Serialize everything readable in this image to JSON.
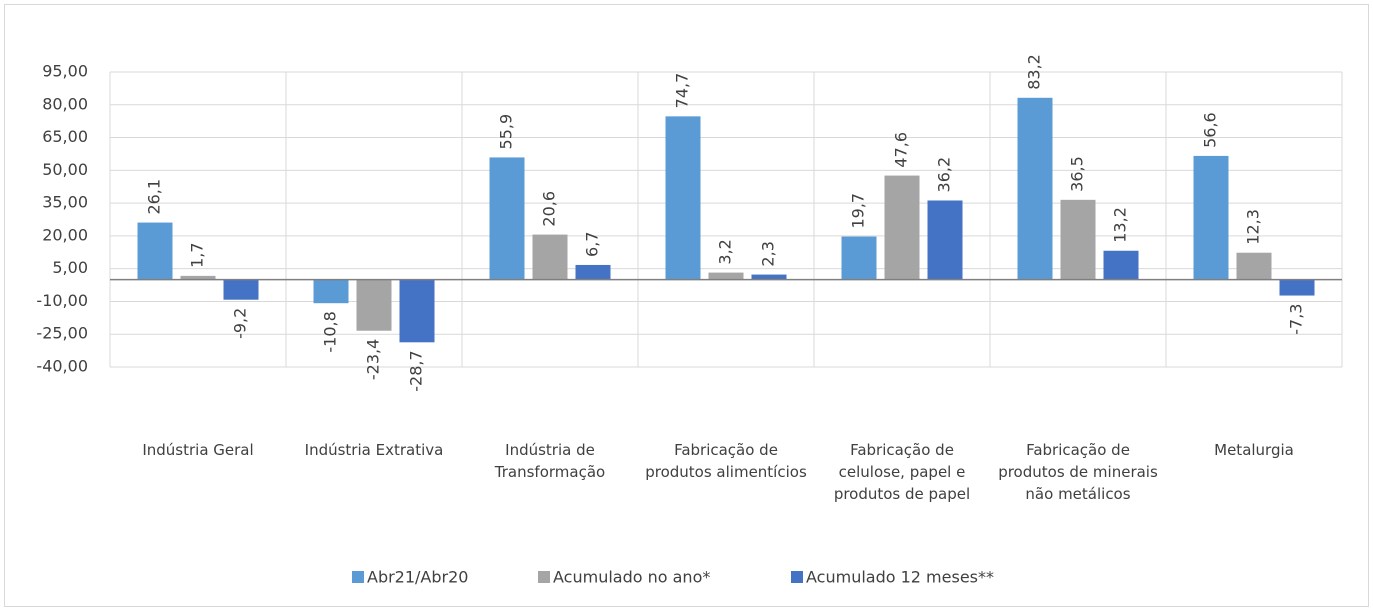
{
  "chart_data": {
    "type": "bar",
    "categories": [
      "Indústria Geral",
      "Indústria Extrativa",
      "Indústria de Transformação",
      "Fabricação de produtos alimentícios",
      "Fabricação de celulose, papel e produtos de papel",
      "Fabricação de produtos de minerais não metálicos",
      "Metalurgia"
    ],
    "series": [
      {
        "name": "Abr21/Abr20",
        "color": "#5b9bd5",
        "values": [
          26.1,
          -10.8,
          55.9,
          74.7,
          19.7,
          83.2,
          56.6
        ],
        "value_labels": [
          "26,1",
          "-10,8",
          "55,9",
          "74,7",
          "19,7",
          "83,2",
          "56,6"
        ]
      },
      {
        "name": "Acumulado no ano*",
        "color": "#a5a5a5",
        "values": [
          1.7,
          -23.4,
          20.6,
          3.2,
          47.6,
          36.5,
          12.3
        ],
        "value_labels": [
          "1,7",
          "-23,4",
          "20,6",
          "3,2",
          "47,6",
          "36,5",
          "12,3"
        ]
      },
      {
        "name": "Acumulado 12 meses**",
        "color": "#4472c4",
        "values": [
          -9.2,
          -28.7,
          6.7,
          2.3,
          36.2,
          13.2,
          -7.3
        ],
        "value_labels": [
          "-9,2",
          "-28,7",
          "6,7",
          "2,3",
          "36,2",
          "13,2",
          "-7,3"
        ]
      }
    ],
    "ylim": [
      -40,
      95
    ],
    "yticks": [
      {
        "value": -40,
        "label": "-40,00"
      },
      {
        "value": -25,
        "label": "-25,00"
      },
      {
        "value": -10,
        "label": "-10,00"
      },
      {
        "value": 5,
        "label": "5,00"
      },
      {
        "value": 20,
        "label": "20,00"
      },
      {
        "value": 35,
        "label": "35,00"
      },
      {
        "value": 50,
        "label": "50,00"
      },
      {
        "value": 65,
        "label": "65,00"
      },
      {
        "value": 80,
        "label": "80,00"
      },
      {
        "value": 95,
        "label": "95,00"
      }
    ],
    "grid": true,
    "legend": "bottom"
  }
}
